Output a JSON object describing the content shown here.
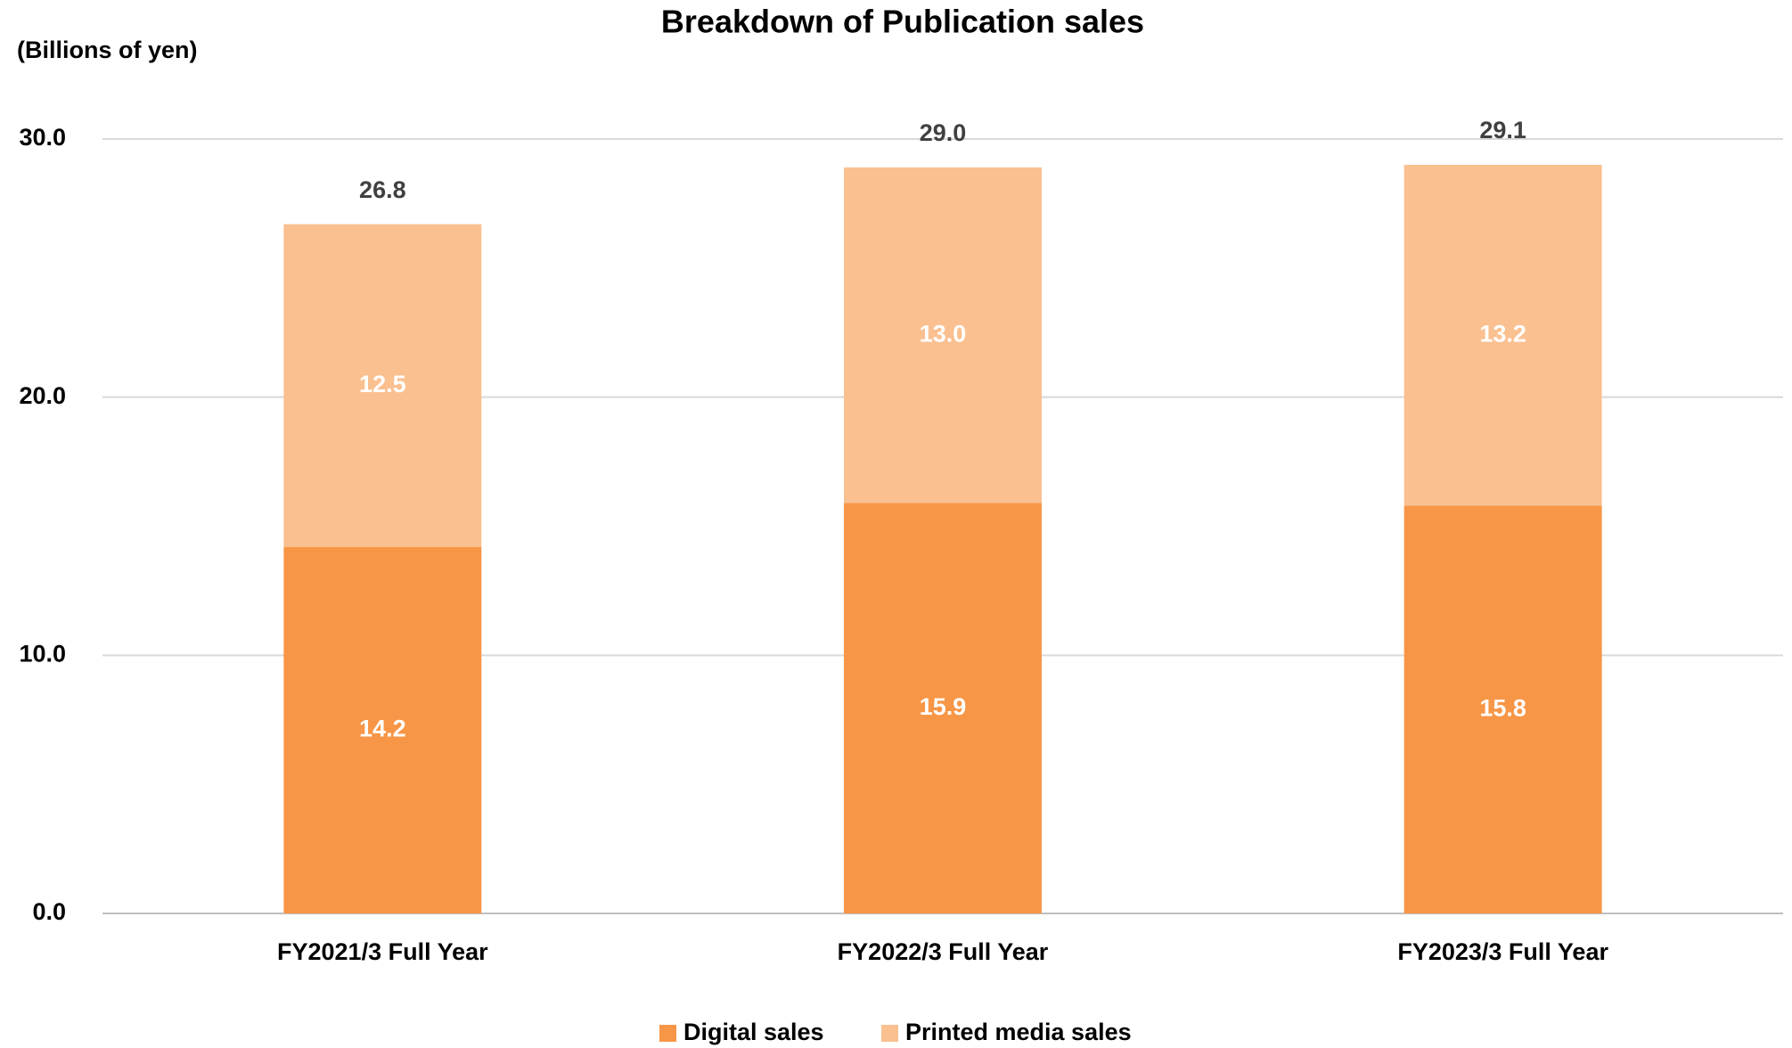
{
  "chart_data": {
    "type": "stacked_bar",
    "title": "Breakdown of Publication sales",
    "y_axis_label": "(Billions of yen)",
    "categories": [
      "FY2021/3 Full Year",
      "FY2022/3 Full Year",
      "FY2023/3 Full Year"
    ],
    "series": [
      {
        "name": "Digital sales",
        "color": "#f79646",
        "values": [
          14.2,
          15.9,
          15.8
        ],
        "value_labels": [
          "14.2",
          "15.9",
          "15.8"
        ]
      },
      {
        "name": "Printed media sales",
        "color": "#fac090",
        "values": [
          12.5,
          13.0,
          13.2
        ],
        "value_labels": [
          "12.5",
          "13.0",
          "13.2"
        ]
      }
    ],
    "totals": {
      "values": [
        26.8,
        29.0,
        29.1
      ],
      "value_labels": [
        "26.8",
        "29.0",
        "29.1"
      ]
    },
    "ylim": [
      0,
      30
    ],
    "yticks": [
      {
        "value": 0,
        "label": "0.0"
      },
      {
        "value": 10,
        "label": "10.0"
      },
      {
        "value": 20,
        "label": "20.0"
      },
      {
        "value": 30,
        "label": "30.0"
      }
    ],
    "grid": true,
    "legend": "bottom"
  }
}
